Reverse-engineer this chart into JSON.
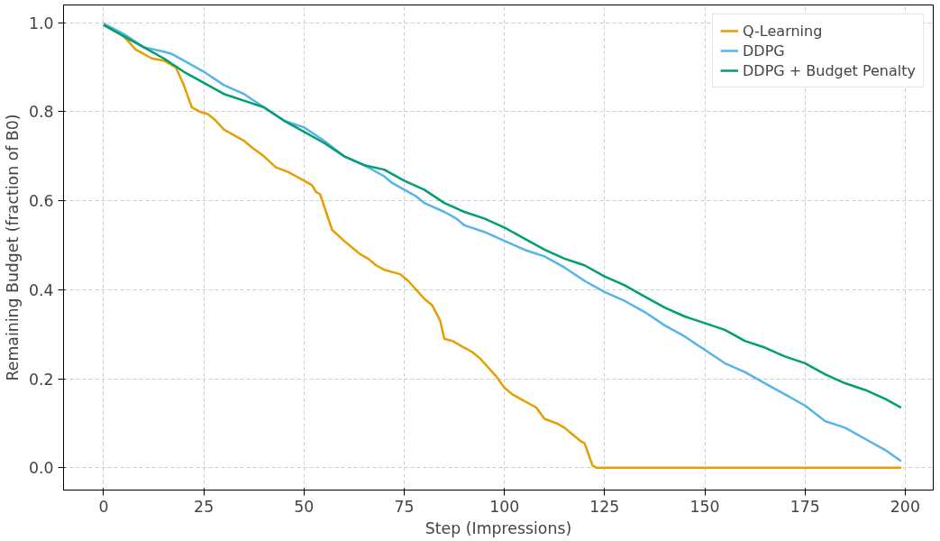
{
  "chart_data": {
    "type": "line",
    "xlabel": "Step (Impressions)",
    "ylabel": "Remaining Budget (fraction of B0)",
    "xlim": [
      -10,
      207
    ],
    "ylim": [
      -0.05,
      1.04
    ],
    "xticks": [
      0,
      25,
      50,
      75,
      100,
      125,
      150,
      175,
      200
    ],
    "yticks": [
      {
        "value": 0,
        "label": "0.0"
      },
      {
        "value": 0.2,
        "label": "0.2"
      },
      {
        "value": 0.4,
        "label": "0.4"
      },
      {
        "value": 0.6,
        "label": "0.6"
      },
      {
        "value": 0.8,
        "label": "0.8"
      },
      {
        "value": 1,
        "label": "1.0"
      }
    ],
    "grid": true,
    "legend": "top right",
    "line_style": "solid",
    "series": [
      {
        "name": "Q-Learning",
        "color": "#e69f00",
        "x": [
          0,
          5,
          8,
          10,
          12,
          15,
          18,
          20,
          22,
          24,
          26,
          28,
          30,
          32,
          35,
          37,
          40,
          43,
          46,
          48,
          50,
          52,
          53,
          54,
          57,
          60,
          62,
          64,
          66,
          68,
          70,
          72,
          74,
          76,
          78,
          80,
          82,
          84,
          85,
          87,
          90,
          92,
          94,
          96,
          98,
          100,
          102,
          104,
          106,
          108,
          110,
          113,
          115,
          117,
          119,
          120,
          122,
          123,
          199
        ],
        "values": [
          0.995,
          0.97,
          0.94,
          0.93,
          0.92,
          0.915,
          0.9,
          0.86,
          0.81,
          0.8,
          0.795,
          0.78,
          0.76,
          0.75,
          0.735,
          0.72,
          0.7,
          0.675,
          0.665,
          0.655,
          0.645,
          0.635,
          0.62,
          0.615,
          0.535,
          0.51,
          0.495,
          0.48,
          0.47,
          0.455,
          0.445,
          0.44,
          0.435,
          0.42,
          0.4,
          0.38,
          0.365,
          0.33,
          0.29,
          0.285,
          0.27,
          0.26,
          0.245,
          0.225,
          0.205,
          0.18,
          0.165,
          0.155,
          0.145,
          0.135,
          0.11,
          0.1,
          0.09,
          0.075,
          0.06,
          0.055,
          0.005,
          0,
          0
        ]
      },
      {
        "name": "DDPG",
        "color": "#56b4e9",
        "x": [
          0,
          5,
          10,
          15,
          17,
          20,
          25,
          30,
          35,
          40,
          45,
          50,
          55,
          60,
          65,
          70,
          72,
          75,
          78,
          80,
          85,
          88,
          90,
          95,
          100,
          105,
          110,
          115,
          120,
          125,
          130,
          135,
          140,
          145,
          150,
          155,
          160,
          165,
          170,
          175,
          180,
          185,
          190,
          195,
          199
        ],
        "values": [
          0.998,
          0.975,
          0.945,
          0.935,
          0.93,
          0.915,
          0.89,
          0.86,
          0.84,
          0.81,
          0.78,
          0.765,
          0.735,
          0.7,
          0.68,
          0.655,
          0.64,
          0.625,
          0.61,
          0.595,
          0.575,
          0.56,
          0.545,
          0.53,
          0.51,
          0.49,
          0.475,
          0.45,
          0.42,
          0.395,
          0.375,
          0.35,
          0.32,
          0.295,
          0.265,
          0.235,
          0.215,
          0.19,
          0.165,
          0.14,
          0.105,
          0.09,
          0.065,
          0.04,
          0.015
        ]
      },
      {
        "name": "DDPG + Budget Penalty",
        "color": "#009e73",
        "x": [
          0,
          5,
          10,
          15,
          20,
          25,
          30,
          35,
          40,
          45,
          50,
          55,
          60,
          65,
          70,
          75,
          80,
          85,
          90,
          95,
          100,
          105,
          110,
          115,
          120,
          125,
          130,
          135,
          140,
          145,
          150,
          155,
          160,
          165,
          170,
          175,
          180,
          185,
          190,
          195,
          199
        ],
        "values": [
          0.995,
          0.97,
          0.945,
          0.92,
          0.89,
          0.865,
          0.84,
          0.825,
          0.81,
          0.78,
          0.755,
          0.73,
          0.7,
          0.68,
          0.67,
          0.645,
          0.625,
          0.595,
          0.575,
          0.56,
          0.54,
          0.515,
          0.49,
          0.47,
          0.455,
          0.43,
          0.41,
          0.385,
          0.36,
          0.34,
          0.325,
          0.31,
          0.285,
          0.27,
          0.25,
          0.235,
          0.21,
          0.19,
          0.175,
          0.155,
          0.135
        ]
      }
    ]
  }
}
